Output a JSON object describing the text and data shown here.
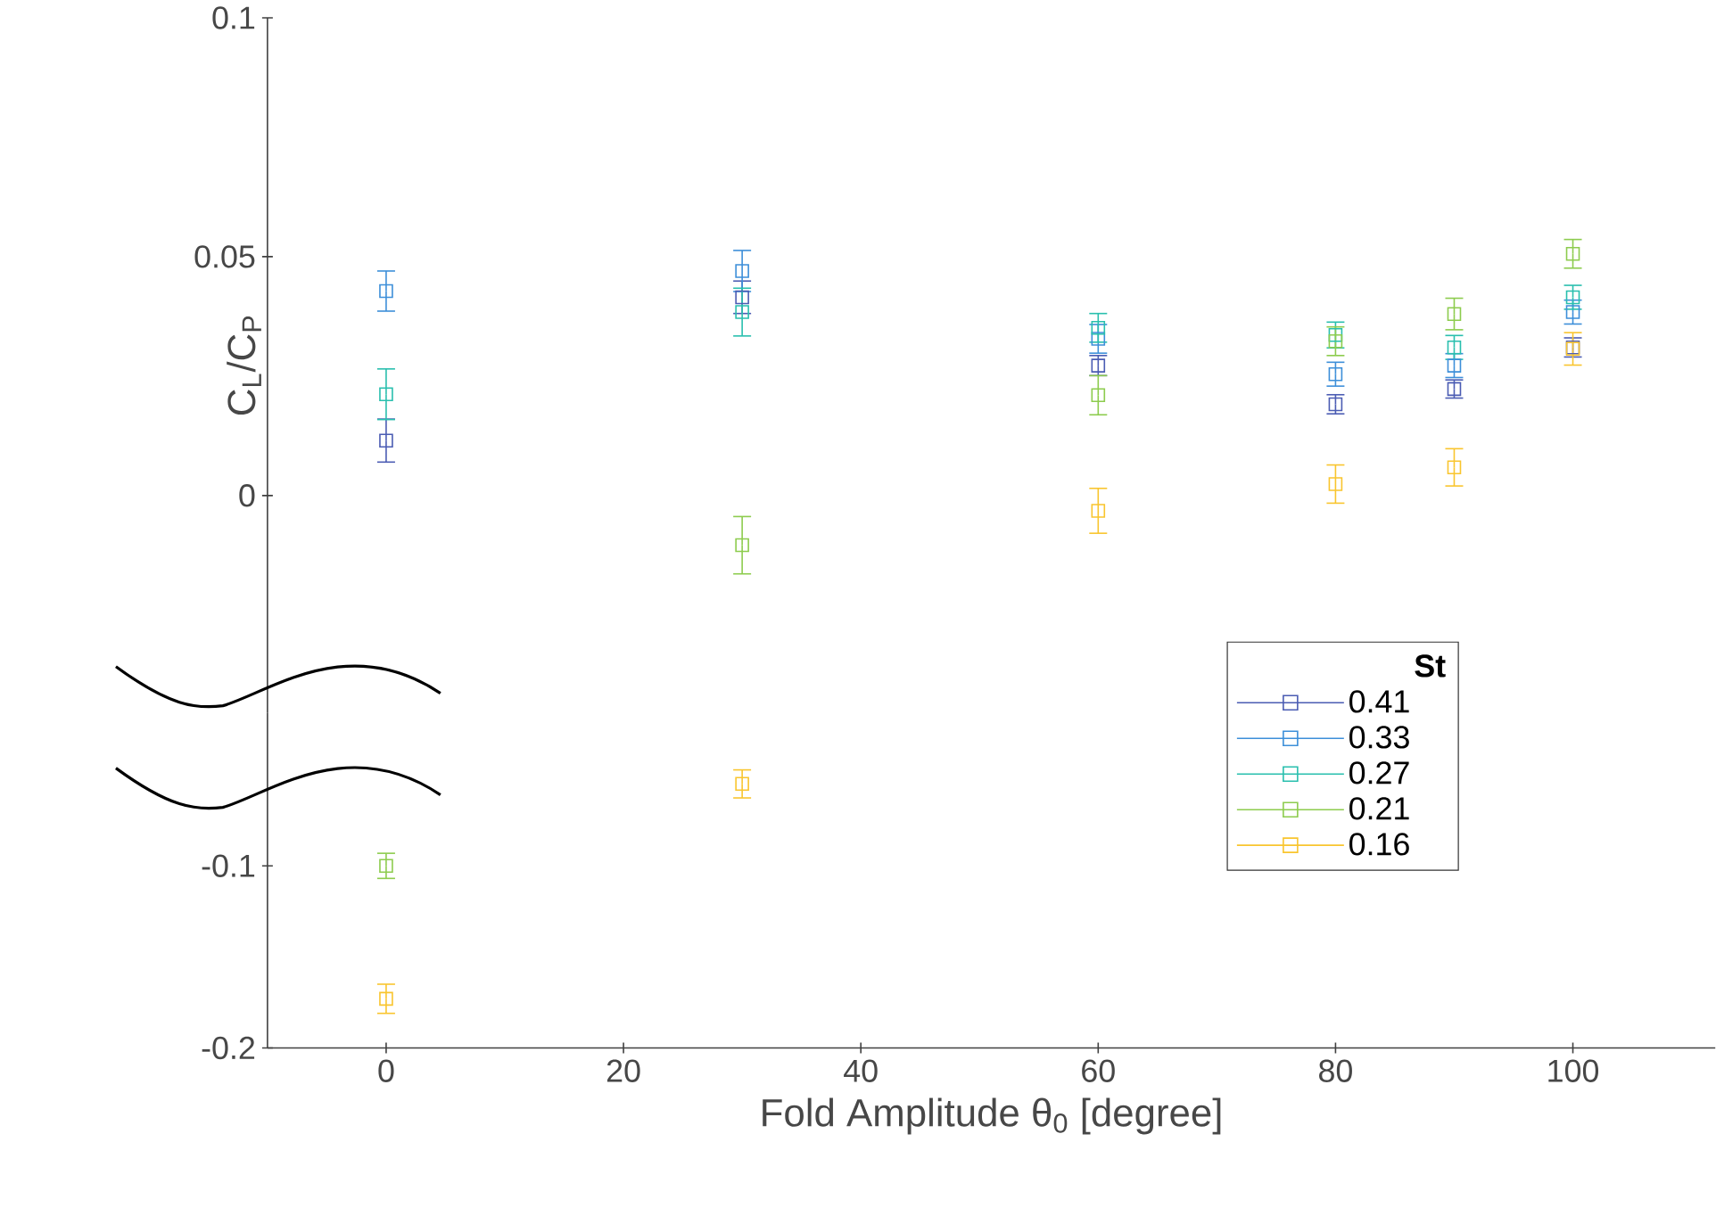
{
  "chart_data": [
    {
      "type": "scatter",
      "ylabel": "C$_{L}$/C$_{P}$",
      "legend_title": "St",
      "legend": "bottom right",
      "x": [
        0,
        30,
        60,
        80,
        90,
        100
      ],
      "ylim": [
        -0.0455,
        0.1
      ],
      "yticks": [
        0,
        0.05,
        0.1
      ],
      "tick_labels": "y",
      "marker": "square",
      "series": [
        {
          "name": "0.41",
          "color": "#4b5cb3",
          "values": [
            0.0115,
            0.0415,
            0.0272,
            0.0191,
            0.0223,
            0.031
          ],
          "errors": [
            0.0045,
            0.0034,
            0.0021,
            0.002,
            0.0019,
            0.002
          ]
        },
        {
          "name": "0.33",
          "color": "#3d8fd9",
          "values": [
            0.0428,
            0.047,
            0.0328,
            0.0254,
            0.0272,
            0.0384
          ],
          "errors": [
            0.0042,
            0.0043,
            0.003,
            0.0025,
            0.0025,
            0.0025
          ]
        },
        {
          "name": "0.27",
          "color": "#29bfae",
          "values": [
            0.0212,
            0.0384,
            0.0351,
            0.0336,
            0.031,
            0.0415
          ],
          "errors": [
            0.0053,
            0.005,
            0.003,
            0.0027,
            0.0025,
            0.0025
          ]
        },
        {
          "name": "0.21",
          "color": "#8dcc4e",
          "values": [
            null,
            -0.0104,
            0.021,
            0.0323,
            0.038,
            0.0506
          ],
          "errors": [
            null,
            0.006,
            0.0041,
            0.003,
            0.0033,
            0.003
          ]
        },
        {
          "name": "0.16",
          "color": "#f9c52e",
          "values": [
            null,
            null,
            -0.0032,
            0.0024,
            0.0059,
            0.0307
          ],
          "errors": [
            null,
            null,
            0.0047,
            0.004,
            0.0039,
            0.0034
          ]
        }
      ]
    },
    {
      "type": "scatter",
      "xlabel": "Fold Amplitude θ$_{0}$ [degree]",
      "x": [
        0,
        30
      ],
      "xlim": [
        -10,
        112
      ],
      "xticks": [
        0,
        20,
        40,
        60,
        80,
        100
      ],
      "ylim": [
        -0.2,
        -0.016
      ],
      "yticks": [
        -0.2,
        -0.1
      ],
      "marker": "square",
      "series": [
        {
          "color": "#8dcc4e",
          "values": [
            -0.1,
            null
          ],
          "errors": [
            0.0069,
            null
          ]
        },
        {
          "color": "#f9c52e",
          "values": [
            -0.173,
            -0.055
          ],
          "errors": [
            0.008,
            0.0077
          ]
        }
      ]
    }
  ]
}
